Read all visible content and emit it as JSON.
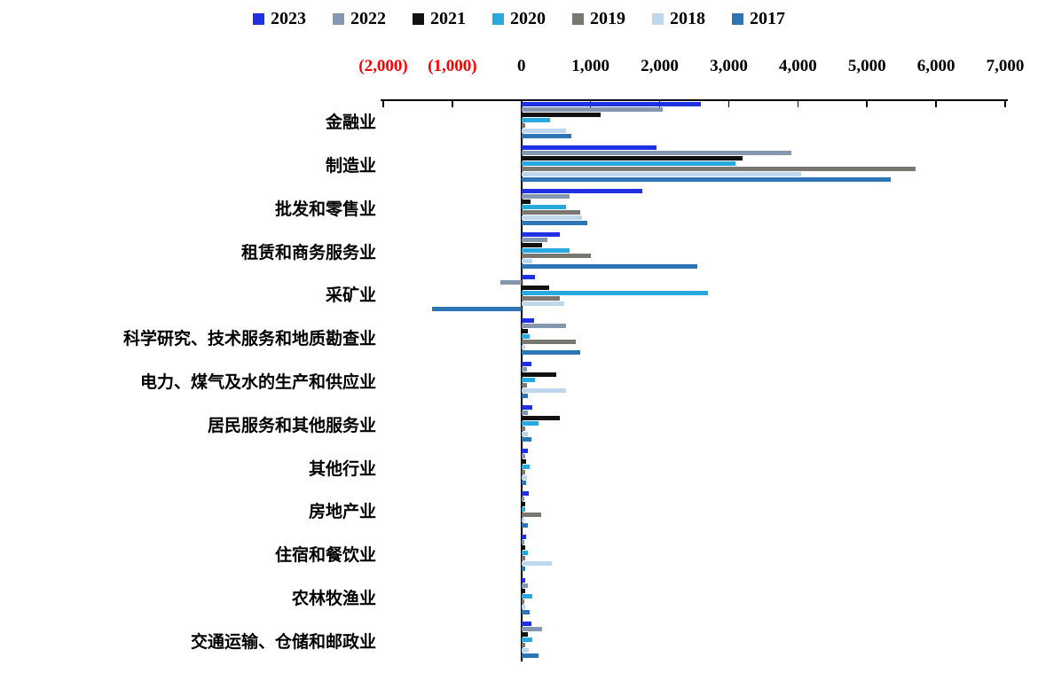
{
  "chart_data": {
    "type": "bar",
    "orientation": "horizontal",
    "title": "",
    "xlabel": "",
    "ylabel": "",
    "xlim": [
      -2000,
      7000
    ],
    "grid": false,
    "legend_position": "top",
    "axis_color": "#000000",
    "negative_tick_color": "#FF0000",
    "x_ticks": [
      {
        "label": "(2,000)",
        "value": -2000,
        "negative": true
      },
      {
        "label": "(1,000)",
        "value": -1000,
        "negative": true
      },
      {
        "label": "0",
        "value": 0,
        "negative": false
      },
      {
        "label": "1,000",
        "value": 1000,
        "negative": false
      },
      {
        "label": "2,000",
        "value": 2000,
        "negative": false
      },
      {
        "label": "3,000",
        "value": 3000,
        "negative": false
      },
      {
        "label": "4,000",
        "value": 4000,
        "negative": false
      },
      {
        "label": "5,000",
        "value": 5000,
        "negative": false
      },
      {
        "label": "6,000",
        "value": 6000,
        "negative": false
      },
      {
        "label": "7,000",
        "value": 7000,
        "negative": false
      }
    ],
    "categories": [
      "金融业",
      "制造业",
      "批发和零售业",
      "租赁和商务服务业",
      "采矿业",
      "科学研究、技术服务和地质勘查业",
      "电力、煤气及水的生产和供应业",
      "居民服务和其他服务业",
      "其他行业",
      "房地产业",
      "住宿和餐饮业",
      "农林牧渔业",
      "交通运输、仓储和邮政业"
    ],
    "series": [
      {
        "name": "2023",
        "color": "#2031E3",
        "values": [
          2600,
          1950,
          1750,
          550,
          200,
          180,
          150,
          160,
          90,
          110,
          70,
          60,
          140
        ]
      },
      {
        "name": "2022",
        "color": "#8496B0",
        "values": [
          2050,
          3900,
          700,
          380,
          -300,
          650,
          80,
          90,
          60,
          40,
          40,
          90,
          300
        ]
      },
      {
        "name": "2021",
        "color": "#111111",
        "values": [
          1150,
          3200,
          130,
          300,
          400,
          90,
          500,
          550,
          70,
          50,
          60,
          50,
          90
        ]
      },
      {
        "name": "2020",
        "color": "#29A8E0",
        "values": [
          420,
          3100,
          650,
          700,
          2700,
          120,
          200,
          250,
          120,
          60,
          90,
          160,
          160
        ]
      },
      {
        "name": "2019",
        "color": "#7A7672",
        "values": [
          60,
          5700,
          850,
          1000,
          550,
          780,
          80,
          60,
          50,
          290,
          60,
          40,
          60
        ]
      },
      {
        "name": "2018",
        "color": "#BDD7EE",
        "values": [
          650,
          4050,
          880,
          160,
          620,
          60,
          650,
          90,
          80,
          40,
          440,
          60,
          110
        ]
      },
      {
        "name": "2017",
        "color": "#2E75B6",
        "values": [
          720,
          5350,
          950,
          2550,
          -1300,
          850,
          90,
          140,
          70,
          90,
          50,
          120,
          250
        ]
      }
    ]
  }
}
